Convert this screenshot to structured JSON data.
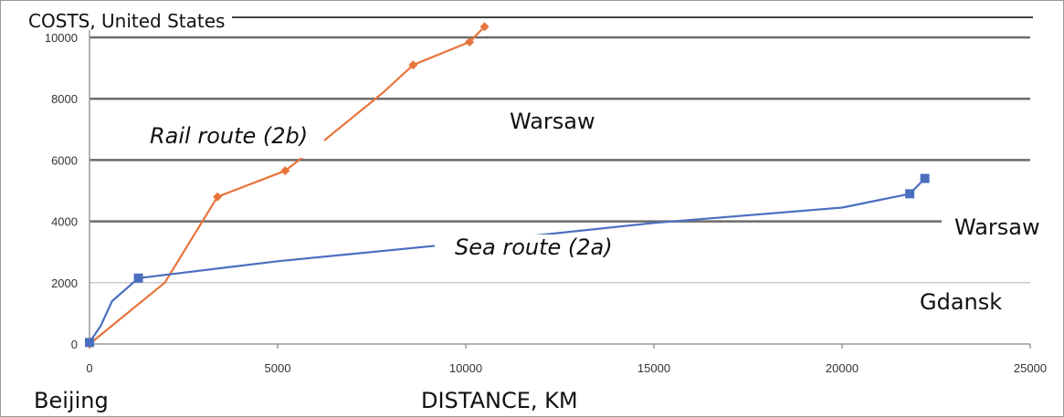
{
  "chart_data": {
    "type": "line",
    "title": "COSTS, United States",
    "xlabel": "DISTANCE, KM",
    "ylabel": "",
    "xlim": [
      0,
      25000
    ],
    "ylim": [
      0,
      10000
    ],
    "x_ticks": [
      0,
      5000,
      10000,
      15000,
      20000,
      25000
    ],
    "y_ticks": [
      0,
      2000,
      4000,
      6000,
      8000,
      10000
    ],
    "grid": "horizontal",
    "series": [
      {
        "name": "Rail route (2b)",
        "color": "#e8743b",
        "marker": "diamond",
        "points": [
          [
            0,
            0
          ],
          [
            2000,
            2000
          ],
          [
            3400,
            4800
          ],
          [
            5200,
            5650
          ],
          [
            6200,
            6600
          ],
          [
            7800,
            8200
          ],
          [
            8600,
            9100
          ],
          [
            10100,
            9850
          ],
          [
            10500,
            10350
          ]
        ],
        "markers": [
          [
            0,
            0
          ],
          [
            3400,
            4800
          ],
          [
            5200,
            5650
          ],
          [
            8600,
            9100
          ],
          [
            10100,
            9850
          ],
          [
            10500,
            10350
          ]
        ]
      },
      {
        "name": "Sea route (2a)",
        "color": "#4a6fbf",
        "marker": "square",
        "points": [
          [
            0,
            50
          ],
          [
            300,
            600
          ],
          [
            600,
            1400
          ],
          [
            1300,
            2150
          ],
          [
            5000,
            2700
          ],
          [
            10000,
            3300
          ],
          [
            15000,
            3950
          ],
          [
            20000,
            4450
          ],
          [
            21800,
            4900
          ],
          [
            22200,
            5400
          ]
        ],
        "markers": [
          [
            0,
            50
          ],
          [
            1300,
            2150
          ],
          [
            21800,
            4900
          ],
          [
            22200,
            5400
          ]
        ]
      }
    ],
    "annotations": {
      "origin": "Beijing",
      "rail_end": "Warsaw",
      "sea_end": "Warsaw",
      "sea_port": "Gdansk"
    }
  }
}
